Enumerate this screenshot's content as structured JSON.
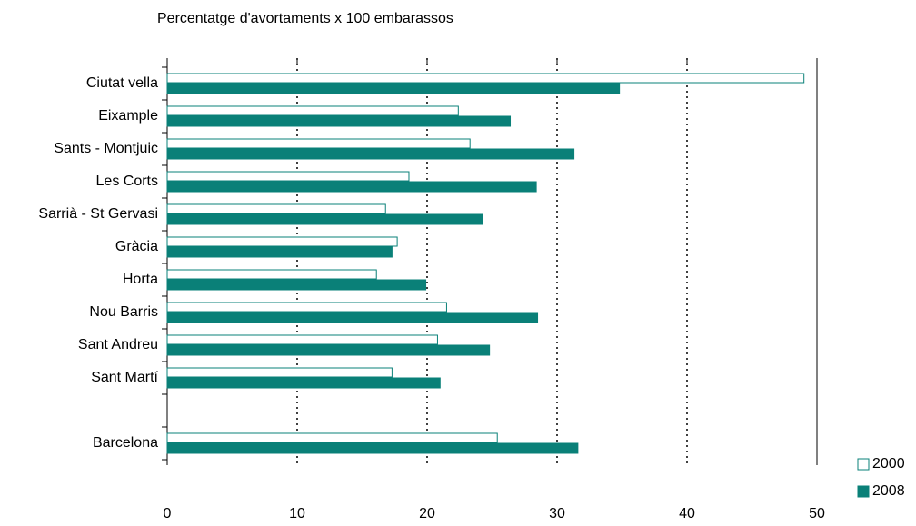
{
  "chart_data": {
    "type": "barh",
    "title": "Percentatge d'avortaments x 100 embarassos",
    "categories": [
      "Ciutat vella",
      "Eixample",
      "Sants - Montjuic",
      "Les Corts",
      "Sarrià - St Gervasi",
      "Gràcia",
      "Horta",
      "Nou Barris",
      "Sant Andreu",
      "Sant Martí",
      null,
      "Barcelona"
    ],
    "series": [
      {
        "name": "2000",
        "color": "#ffffff",
        "edgecolor": "#0a8078",
        "values": [
          49,
          22.4,
          23.3,
          18.6,
          16.8,
          17.7,
          16.1,
          21.5,
          20.8,
          17.3,
          null,
          25.4
        ]
      },
      {
        "name": "2008",
        "color": "#0a8078",
        "edgecolor": "#0a8078",
        "values": [
          34.8,
          26.4,
          31.3,
          28.4,
          24.3,
          17.3,
          19.9,
          28.5,
          24.8,
          21.0,
          null,
          31.6
        ]
      }
    ],
    "xlim": [
      0,
      50
    ],
    "xticks": [
      0,
      10,
      20,
      30,
      40,
      50
    ],
    "grid": true,
    "grid_style": "dotted",
    "legend_position": "bottom-right"
  }
}
